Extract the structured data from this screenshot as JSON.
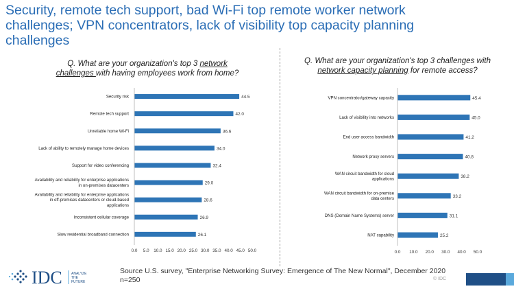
{
  "title_line1": "Security, remote tech support, bad Wi-Fi top remote worker network",
  "title_line2": "challenges; VPN concentrators, lack of visibility top capacity planning",
  "title_line3": "challenges",
  "left_question": {
    "prefix": "Q. What are your organization's top 3 ",
    "underlined": "network challenges ",
    "suffix": "with having employees work from home?"
  },
  "right_question": {
    "prefix": "Q. What are your organization's top 3 challenges with ",
    "underlined": "network capacity planning",
    "suffix": " for remote access?"
  },
  "source": "Source U.S. survey, \"Enterprise Networking Survey: Emergence of The New Normal\", December 2020",
  "sample": "n=250",
  "logo": {
    "text": "IDC",
    "tagline": [
      "ANALYZE",
      "THE",
      "FUTURE"
    ]
  },
  "copyright": "© IDC",
  "colors": {
    "bar": "#2e75b6",
    "title": "#2a6db5",
    "brand_dark": "#1f4f86",
    "brand_light": "#5aa9dc"
  },
  "chart_data": [
    {
      "type": "bar",
      "orientation": "horizontal",
      "categories": [
        [
          "Security risk"
        ],
        [
          "Remote tech support"
        ],
        [
          "Unreliable home Wi-Fi"
        ],
        [
          "Lack of ability to remotely manage home devices"
        ],
        [
          "Support for video conferencing"
        ],
        [
          "Availability and reliability for enterprise applications",
          "in on-premises datacenters"
        ],
        [
          "Availability and reliability for enterprise applications",
          "in off-premises datacenters or cloud-based",
          "applications"
        ],
        [
          "Inconsistent cellular coverage"
        ],
        [
          "Slow residential broadband connection"
        ]
      ],
      "values": [
        44.5,
        42.0,
        36.6,
        34.0,
        32.4,
        29.0,
        28.6,
        26.9,
        26.1
      ],
      "value_labels": [
        "44.5",
        "42.0",
        "36.6",
        "34.0",
        "32.4",
        "29.0",
        "28.6",
        "26.9",
        "26.1"
      ],
      "xlim": [
        0,
        50
      ],
      "ticks": [
        "0.0",
        "5.0",
        "10.0",
        "15.0",
        "20.0",
        "25.0",
        "30.0",
        "35.0",
        "40.0",
        "45.0",
        "50.0"
      ],
      "grid": false
    },
    {
      "type": "bar",
      "orientation": "horizontal",
      "categories": [
        [
          "VPN concentrator/gateway capacity"
        ],
        [
          "Lack of visibility into networks"
        ],
        [
          "End user access bandwidth"
        ],
        [
          "Network proxy servers"
        ],
        [
          "WAN circuit bandwidth for cloud",
          "applications"
        ],
        [
          "WAN circuit bandwidth for on-premise",
          "data centers"
        ],
        [
          "DNS (Domain Name Systems) server"
        ],
        [
          "NAT capability"
        ]
      ],
      "values": [
        45.4,
        45.0,
        41.2,
        40.8,
        38.2,
        33.2,
        31.1,
        25.2
      ],
      "value_labels": [
        "45.4",
        "45.0",
        "41.2",
        "40.8",
        "38.2",
        "33.2",
        "31.1",
        "25.2"
      ],
      "xlim": [
        0,
        50
      ],
      "ticks": [
        "0.0",
        "10.0",
        "20.0",
        "30.0",
        "40.0",
        "50.0"
      ],
      "grid": false
    }
  ]
}
